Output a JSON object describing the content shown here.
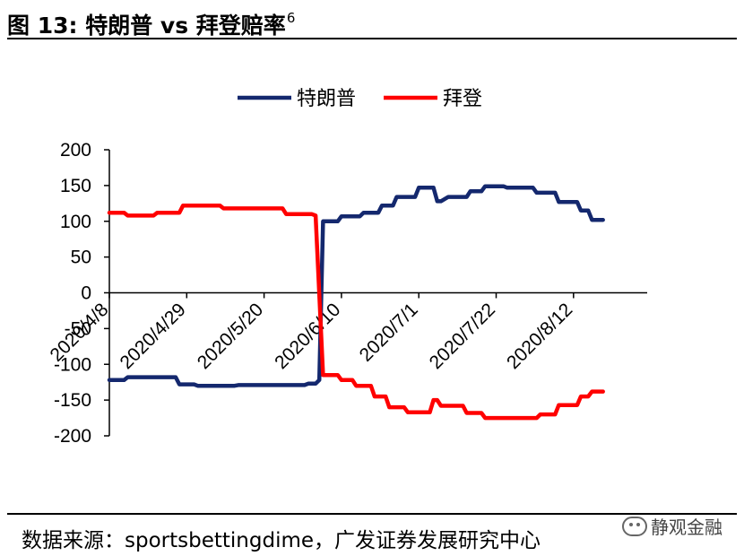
{
  "figure": {
    "label": "图 13:",
    "title": "特朗普 vs 拜登赔率",
    "footnote_mark": "6"
  },
  "source": "数据来源：sportsbettingdime，广发证券发展研究中心",
  "watermark": "静观金融",
  "colors": {
    "trump": "#14286E",
    "biden": "#FF0000",
    "axis": "#000000"
  },
  "chart_data": {
    "type": "line",
    "title": "",
    "xlabel": "",
    "ylabel": "",
    "ylim": [
      -200,
      200
    ],
    "yticks": [
      200,
      150,
      100,
      50,
      0,
      -50,
      -100,
      -150,
      -200
    ],
    "x_range": [
      "2020-04-08",
      "2020-09-01"
    ],
    "x_ticks": [
      {
        "date": "2020-04-08",
        "label": "2020/4/8"
      },
      {
        "date": "2020-04-29",
        "label": "2020/4/29"
      },
      {
        "date": "2020-05-20",
        "label": "2020/5/20"
      },
      {
        "date": "2020-06-10",
        "label": "2020/6/10"
      },
      {
        "date": "2020-07-01",
        "label": "2020/7/1"
      },
      {
        "date": "2020-07-22",
        "label": "2020/7/22"
      },
      {
        "date": "2020-08-12",
        "label": "2020/8/12"
      }
    ],
    "legend_position": "top-center",
    "grid": false,
    "series": [
      {
        "name": "特朗普",
        "color": "#14286E",
        "points": [
          [
            "2020-04-08",
            -122
          ],
          [
            "2020-04-12",
            -122
          ],
          [
            "2020-04-13",
            -118
          ],
          [
            "2020-04-26",
            -118
          ],
          [
            "2020-04-27",
            -128
          ],
          [
            "2020-05-01",
            -128
          ],
          [
            "2020-05-02",
            -130
          ],
          [
            "2020-05-12",
            -130
          ],
          [
            "2020-05-13",
            -129
          ],
          [
            "2020-05-31",
            -129
          ],
          [
            "2020-06-01",
            -127
          ],
          [
            "2020-06-03",
            -127
          ],
          [
            "2020-06-04",
            -122
          ],
          [
            "2020-06-05",
            100
          ],
          [
            "2020-06-09",
            100
          ],
          [
            "2020-06-10",
            107
          ],
          [
            "2020-06-15",
            107
          ],
          [
            "2020-06-16",
            112
          ],
          [
            "2020-06-20",
            112
          ],
          [
            "2020-06-21",
            122
          ],
          [
            "2020-06-24",
            122
          ],
          [
            "2020-06-25",
            134
          ],
          [
            "2020-06-30",
            134
          ],
          [
            "2020-07-01",
            147
          ],
          [
            "2020-07-05",
            147
          ],
          [
            "2020-07-06",
            128
          ],
          [
            "2020-07-07",
            128
          ],
          [
            "2020-07-09",
            134
          ],
          [
            "2020-07-14",
            134
          ],
          [
            "2020-07-15",
            142
          ],
          [
            "2020-07-18",
            142
          ],
          [
            "2020-07-19",
            149
          ],
          [
            "2020-07-24",
            149
          ],
          [
            "2020-07-25",
            147
          ],
          [
            "2020-08-01",
            147
          ],
          [
            "2020-08-02",
            140
          ],
          [
            "2020-08-07",
            140
          ],
          [
            "2020-08-08",
            127
          ],
          [
            "2020-08-13",
            127
          ],
          [
            "2020-08-14",
            115
          ],
          [
            "2020-08-16",
            115
          ],
          [
            "2020-08-17",
            102
          ],
          [
            "2020-08-20",
            102
          ]
        ]
      },
      {
        "name": "拜登",
        "color": "#FF0000",
        "points": [
          [
            "2020-04-08",
            112
          ],
          [
            "2020-04-12",
            112
          ],
          [
            "2020-04-13",
            108
          ],
          [
            "2020-04-20",
            108
          ],
          [
            "2020-04-21",
            112
          ],
          [
            "2020-04-27",
            112
          ],
          [
            "2020-04-28",
            122
          ],
          [
            "2020-05-08",
            122
          ],
          [
            "2020-05-09",
            118
          ],
          [
            "2020-05-25",
            118
          ],
          [
            "2020-05-26",
            110
          ],
          [
            "2020-06-02",
            110
          ],
          [
            "2020-06-03",
            108
          ],
          [
            "2020-06-05",
            -115
          ],
          [
            "2020-06-09",
            -115
          ],
          [
            "2020-06-10",
            -122
          ],
          [
            "2020-06-13",
            -122
          ],
          [
            "2020-06-14",
            -130
          ],
          [
            "2020-06-18",
            -130
          ],
          [
            "2020-06-19",
            -145
          ],
          [
            "2020-06-22",
            -145
          ],
          [
            "2020-06-23",
            -160
          ],
          [
            "2020-06-27",
            -160
          ],
          [
            "2020-06-28",
            -167
          ],
          [
            "2020-07-04",
            -167
          ],
          [
            "2020-07-05",
            -150
          ],
          [
            "2020-07-06",
            -150
          ],
          [
            "2020-07-07",
            -158
          ],
          [
            "2020-07-13",
            -158
          ],
          [
            "2020-07-14",
            -168
          ],
          [
            "2020-07-18",
            -168
          ],
          [
            "2020-07-19",
            -175
          ],
          [
            "2020-08-02",
            -175
          ],
          [
            "2020-08-03",
            -170
          ],
          [
            "2020-08-07",
            -170
          ],
          [
            "2020-08-08",
            -157
          ],
          [
            "2020-08-13",
            -157
          ],
          [
            "2020-08-14",
            -145
          ],
          [
            "2020-08-16",
            -145
          ],
          [
            "2020-08-17",
            -138
          ],
          [
            "2020-08-20",
            -138
          ]
        ]
      }
    ]
  }
}
